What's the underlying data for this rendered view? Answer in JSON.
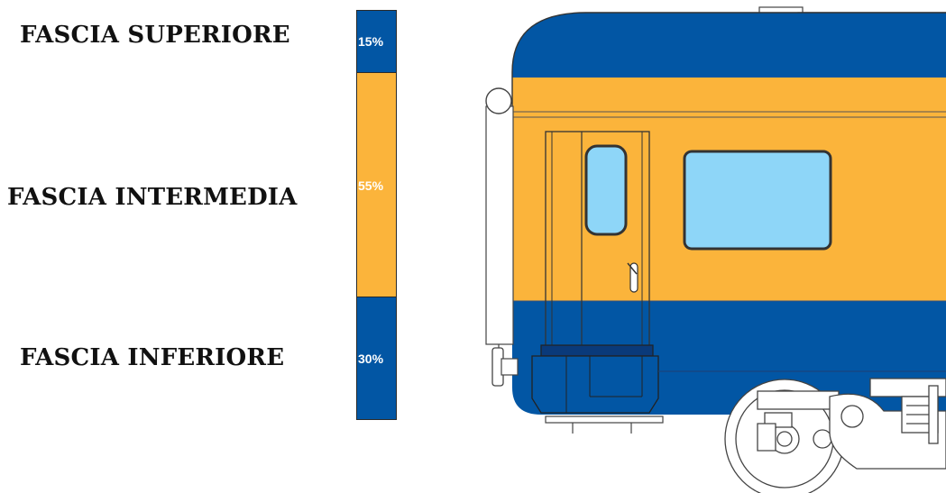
{
  "bands": [
    {
      "key": "top",
      "label": "FASCIA SUPERIORE",
      "percent_label": "15%",
      "fraction": 0.15,
      "color": "#0256A4"
    },
    {
      "key": "mid",
      "label": "FASCIA INTERMEDIA",
      "percent_label": "55%",
      "fraction": 0.55,
      "color": "#FBB43B"
    },
    {
      "key": "bot",
      "label": "FASCIA INFERIORE",
      "percent_label": "30%",
      "fraction": 0.3,
      "color": "#0256A4"
    }
  ],
  "colors": {
    "blue": "#0256A4",
    "yellow": "#FBB43B",
    "window": "#8ED6F8",
    "outline": "#333333",
    "line": "#555555"
  }
}
